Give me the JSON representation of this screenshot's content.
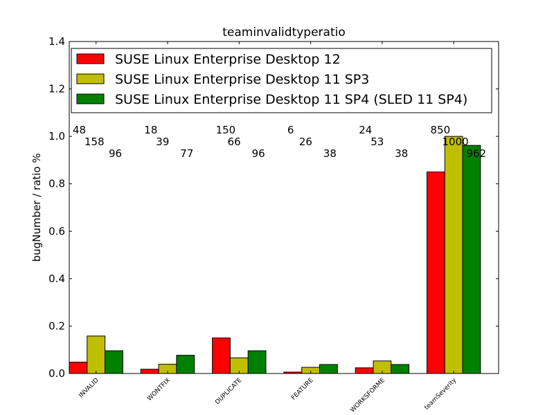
{
  "chart_data": {
    "type": "bar",
    "title": "teaminvalidtyperatio",
    "xlabel": "",
    "ylabel": "bugNumber / ratio %",
    "ylim": [
      0,
      1.4
    ],
    "yticks": [
      "0.0",
      "0.2",
      "0.4",
      "0.6",
      "0.8",
      "1.0",
      "1.2",
      "1.4"
    ],
    "grid": false,
    "legend_position": "top",
    "categories": [
      "INVALID",
      "WONTFIX",
      "DUPLICATE",
      "FEATURE",
      "WORKSFORME",
      "teamSeverity"
    ],
    "series": [
      {
        "name": "SUSE Linux Enterprise Desktop 12",
        "color": "#ff0000",
        "values": [
          0.048,
          0.018,
          0.15,
          0.006,
          0.024,
          0.85
        ],
        "labels": [
          "48",
          "18",
          "150",
          "6",
          "24",
          "850"
        ]
      },
      {
        "name": "SUSE Linux Enterprise Desktop 11 SP3",
        "color": "#bfbf00",
        "values": [
          0.158,
          0.039,
          0.066,
          0.026,
          0.053,
          1.0
        ],
        "labels": [
          "158",
          "39",
          "66",
          "26",
          "53",
          "1000"
        ]
      },
      {
        "name": "SUSE Linux Enterprise Desktop 11 SP4 (SLED 11 SP4)",
        "color": "#008000",
        "values": [
          0.096,
          0.077,
          0.096,
          0.038,
          0.038,
          0.962
        ],
        "labels": [
          "96",
          "77",
          "96",
          "38",
          "38",
          "962"
        ]
      }
    ]
  }
}
